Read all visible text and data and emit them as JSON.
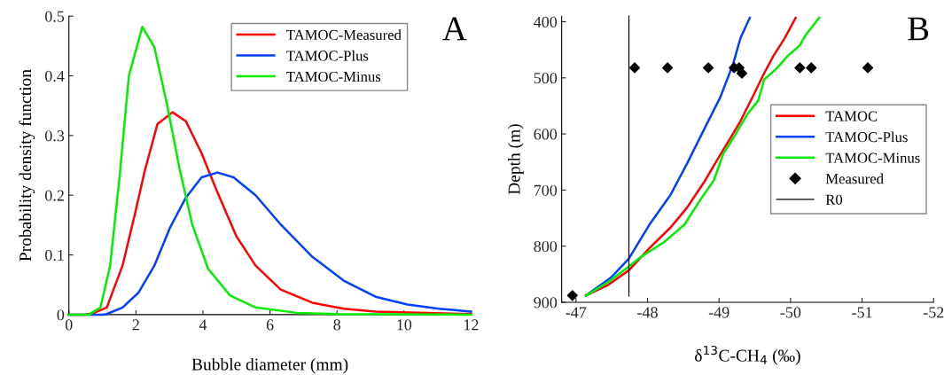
{
  "chart_data": [
    {
      "type": "line",
      "xlabel": "Bubble diameter (mm)",
      "ylabel": "Probability density function",
      "annotations": [
        "A"
      ],
      "xlim": [
        0,
        12
      ],
      "ylim": [
        0,
        0.5
      ],
      "xticks": [
        0,
        2,
        4,
        6,
        8,
        10,
        12
      ],
      "yticks": [
        0,
        0.1,
        0.2,
        0.3,
        0.4,
        0.5
      ],
      "legend": "top right",
      "grid": false,
      "series": [
        {
          "name": "TAMOC-Measured",
          "color": "#ff0000",
          "x": [
            0,
            0.5,
            0.75,
            1.13,
            1.6,
            1.98,
            2.26,
            2.64,
            3.09,
            3.49,
            3.96,
            4.43,
            5.0,
            5.57,
            6.32,
            7.26,
            8.2,
            9.15,
            12
          ],
          "values": [
            0,
            0,
            0.003,
            0.012,
            0.082,
            0.171,
            0.24,
            0.319,
            0.339,
            0.324,
            0.27,
            0.205,
            0.131,
            0.082,
            0.042,
            0.02,
            0.01,
            0.005,
            0.001
          ]
        },
        {
          "name": "TAMOC-Plus",
          "color": "#0040ff",
          "x": [
            0,
            1.0,
            1.13,
            1.6,
            2.08,
            2.55,
            3.02,
            3.49,
            3.96,
            4.43,
            4.91,
            5.57,
            6.32,
            7.26,
            8.2,
            9.15,
            10.1,
            11.04,
            12
          ],
          "values": [
            0,
            0,
            0.001,
            0.012,
            0.037,
            0.082,
            0.146,
            0.196,
            0.23,
            0.238,
            0.23,
            0.2,
            0.151,
            0.097,
            0.057,
            0.03,
            0.017,
            0.01,
            0.005
          ]
        },
        {
          "name": "TAMOC-Minus",
          "color": "#00ee00",
          "x": [
            0,
            0.6,
            0.94,
            1.23,
            1.51,
            1.79,
            2.19,
            2.55,
            2.92,
            3.3,
            3.68,
            4.15,
            4.81,
            5.57,
            6.8,
            8,
            12
          ],
          "values": [
            0,
            0,
            0.012,
            0.082,
            0.23,
            0.4,
            0.482,
            0.448,
            0.354,
            0.245,
            0.151,
            0.077,
            0.032,
            0.012,
            0.003,
            0.001,
            0
          ]
        }
      ]
    },
    {
      "type": "line",
      "xlabel": "δ$^{13}$C-CH$_{4}$ (‰)",
      "ylabel": "Depth (m)",
      "annotations": [
        "B"
      ],
      "xlim": [
        -46.8,
        -52
      ],
      "ylim": [
        900,
        390
      ],
      "xticks": [
        -47,
        -48,
        -49,
        -50,
        -51,
        -52
      ],
      "yticks": [
        400,
        500,
        600,
        700,
        800,
        900
      ],
      "legend": "right",
      "grid": false,
      "series": [
        {
          "name": "TAMOC",
          "color": "#ff0000",
          "x": [
            -50.07,
            -49.92,
            -49.76,
            -49.63,
            -49.47,
            -49.3,
            -49.18,
            -48.98,
            -48.81,
            -48.56,
            -48.32,
            -48.03,
            -47.74,
            -47.45,
            -47.14
          ],
          "values": [
            393,
            429,
            461,
            492,
            534,
            577,
            603,
            645,
            682,
            730,
            767,
            803,
            843,
            869,
            888
          ]
        },
        {
          "name": "TAMOC-Plus",
          "color": "#0040ff",
          "x": [
            -49.43,
            -49.3,
            -49.2,
            -49.02,
            -48.81,
            -48.56,
            -48.32,
            -48.03,
            -47.74,
            -47.49,
            -47.14
          ],
          "values": [
            393,
            429,
            474,
            534,
            587,
            651,
            709,
            761,
            822,
            856,
            888
          ]
        },
        {
          "name": "TAMOC-Minus",
          "color": "#00ee00",
          "x": [
            -50.4,
            -50.21,
            -50.13,
            -49.96,
            -49.8,
            -49.63,
            -49.55,
            -49.39,
            -49.22,
            -49.06,
            -48.93,
            -48.73,
            -48.52,
            -48.23,
            -47.91,
            -47.7,
            -47.45,
            -47.14
          ],
          "values": [
            393,
            424,
            442,
            461,
            484,
            503,
            540,
            566,
            603,
            635,
            682,
            719,
            761,
            793,
            819,
            840,
            864,
            888
          ]
        },
        {
          "name": "Measured",
          "type": "scatter",
          "marker": "diamond",
          "color": "#000000",
          "x": [
            -47.82,
            -48.28,
            -48.85,
            -49.21,
            -49.28,
            -49.32,
            -50.13,
            -50.29,
            -51.08,
            -46.95
          ],
          "values": [
            482,
            482,
            482,
            482,
            482,
            492,
            482,
            482,
            482,
            888
          ]
        },
        {
          "name": "R0",
          "color": "#000000",
          "x": [
            -47.74,
            -47.74
          ],
          "values": [
            390,
            889
          ]
        }
      ]
    }
  ]
}
